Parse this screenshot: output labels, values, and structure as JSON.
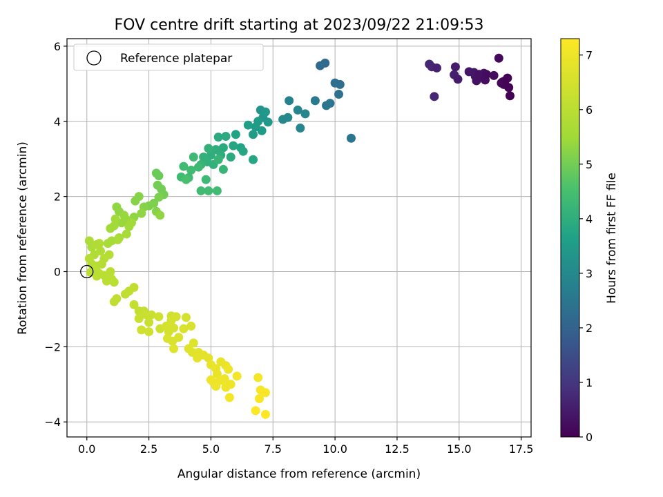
{
  "chart_data": {
    "type": "scatter",
    "title": "FOV centre drift starting at 2023/09/22 21:09:53",
    "xlabel": "Angular distance from reference (arcmin)",
    "ylabel": "Rotation from reference (arcmin)",
    "xlim": [
      -0.8,
      17.9
    ],
    "ylim": [
      -4.4,
      6.2
    ],
    "xticks": [
      "0.0",
      "2.5",
      "5.0",
      "7.5",
      "10.0",
      "12.5",
      "15.0",
      "17.5"
    ],
    "yticks": [
      "-4",
      "-2",
      "0",
      "2",
      "4",
      "6"
    ],
    "grid": true,
    "legend": {
      "placement": "upper-left",
      "entries": [
        "Reference platepar"
      ]
    },
    "reference_point": {
      "x": 0.0,
      "y": 0.0
    },
    "colorbar": {
      "label": "Hours from first FF file",
      "range": [
        0,
        7.3
      ],
      "ticks": [
        "0",
        "1",
        "2",
        "3",
        "4",
        "5",
        "6",
        "7"
      ],
      "colormap": "viridis"
    },
    "points": [
      {
        "x": 13.8,
        "y": 5.52,
        "t": 0.7
      },
      {
        "x": 13.9,
        "y": 5.45,
        "t": 0.7
      },
      {
        "x": 14.0,
        "y": 4.66,
        "t": 0.7
      },
      {
        "x": 14.1,
        "y": 5.42,
        "t": 0.6
      },
      {
        "x": 14.8,
        "y": 5.24,
        "t": 0.6
      },
      {
        "x": 14.85,
        "y": 5.45,
        "t": 0.5
      },
      {
        "x": 14.95,
        "y": 5.12,
        "t": 0.5
      },
      {
        "x": 15.4,
        "y": 5.32,
        "t": 0.4
      },
      {
        "x": 15.6,
        "y": 5.3,
        "t": 0.4
      },
      {
        "x": 15.65,
        "y": 5.2,
        "t": 0.4
      },
      {
        "x": 15.7,
        "y": 5.08,
        "t": 0.3
      },
      {
        "x": 15.8,
        "y": 5.25,
        "t": 0.3
      },
      {
        "x": 15.9,
        "y": 5.18,
        "t": 0.3
      },
      {
        "x": 16.0,
        "y": 5.28,
        "t": 0.3
      },
      {
        "x": 16.05,
        "y": 5.1,
        "t": 0.25
      },
      {
        "x": 16.1,
        "y": 5.25,
        "t": 0.2
      },
      {
        "x": 16.4,
        "y": 5.22,
        "t": 0.2
      },
      {
        "x": 16.6,
        "y": 5.68,
        "t": 0.15
      },
      {
        "x": 16.7,
        "y": 5.02,
        "t": 0.1
      },
      {
        "x": 16.75,
        "y": 5.05,
        "t": 0.1
      },
      {
        "x": 16.8,
        "y": 4.98,
        "t": 0.08
      },
      {
        "x": 16.85,
        "y": 5.08,
        "t": 0.07
      },
      {
        "x": 16.95,
        "y": 5.15,
        "t": 0.05
      },
      {
        "x": 17.0,
        "y": 4.9,
        "t": 0.03
      },
      {
        "x": 17.05,
        "y": 4.68,
        "t": 0.0
      },
      {
        "x": 9.4,
        "y": 5.48,
        "t": 2.2
      },
      {
        "x": 9.6,
        "y": 5.55,
        "t": 2.2
      },
      {
        "x": 10.0,
        "y": 5.02,
        "t": 2.3
      },
      {
        "x": 10.2,
        "y": 4.98,
        "t": 2.3
      },
      {
        "x": 10.15,
        "y": 4.72,
        "t": 2.4
      },
      {
        "x": 9.65,
        "y": 4.42,
        "t": 2.5
      },
      {
        "x": 9.8,
        "y": 4.48,
        "t": 2.5
      },
      {
        "x": 9.2,
        "y": 4.55,
        "t": 2.6
      },
      {
        "x": 10.65,
        "y": 3.55,
        "t": 2.5
      },
      {
        "x": 8.15,
        "y": 4.55,
        "t": 2.8
      },
      {
        "x": 8.5,
        "y": 4.3,
        "t": 2.9
      },
      {
        "x": 8.8,
        "y": 4.2,
        "t": 2.9
      },
      {
        "x": 8.6,
        "y": 3.82,
        "t": 2.9
      },
      {
        "x": 8.1,
        "y": 4.1,
        "t": 3.0
      },
      {
        "x": 7.9,
        "y": 4.05,
        "t": 3.0
      },
      {
        "x": 7.0,
        "y": 4.3,
        "t": 3.3
      },
      {
        "x": 7.1,
        "y": 4.1,
        "t": 3.3
      },
      {
        "x": 7.2,
        "y": 4.25,
        "t": 3.4
      },
      {
        "x": 7.3,
        "y": 3.98,
        "t": 3.4
      },
      {
        "x": 6.8,
        "y": 3.85,
        "t": 3.5
      },
      {
        "x": 6.9,
        "y": 4.0,
        "t": 3.5
      },
      {
        "x": 6.7,
        "y": 3.65,
        "t": 3.5
      },
      {
        "x": 6.5,
        "y": 3.9,
        "t": 3.6
      },
      {
        "x": 7.05,
        "y": 3.75,
        "t": 3.5
      },
      {
        "x": 6.2,
        "y": 3.3,
        "t": 3.7
      },
      {
        "x": 6.0,
        "y": 3.65,
        "t": 3.7
      },
      {
        "x": 6.3,
        "y": 3.2,
        "t": 3.8
      },
      {
        "x": 5.9,
        "y": 3.35,
        "t": 3.8
      },
      {
        "x": 6.7,
        "y": 2.98,
        "t": 3.8
      },
      {
        "x": 5.8,
        "y": 3.05,
        "t": 3.9
      },
      {
        "x": 5.6,
        "y": 3.6,
        "t": 3.9
      },
      {
        "x": 5.5,
        "y": 3.3,
        "t": 3.9
      },
      {
        "x": 5.3,
        "y": 3.58,
        "t": 3.9
      },
      {
        "x": 5.4,
        "y": 3.1,
        "t": 4.0
      },
      {
        "x": 5.2,
        "y": 3.25,
        "t": 4.0
      },
      {
        "x": 5.0,
        "y": 3.1,
        "t": 4.0
      },
      {
        "x": 4.9,
        "y": 3.28,
        "t": 4.1
      },
      {
        "x": 4.85,
        "y": 2.92,
        "t": 4.1
      },
      {
        "x": 4.7,
        "y": 3.05,
        "t": 4.1
      },
      {
        "x": 5.1,
        "y": 2.85,
        "t": 4.1
      },
      {
        "x": 5.5,
        "y": 2.72,
        "t": 4.2
      },
      {
        "x": 5.3,
        "y": 2.98,
        "t": 4.2
      },
      {
        "x": 4.6,
        "y": 2.85,
        "t": 4.2
      },
      {
        "x": 4.5,
        "y": 2.78,
        "t": 4.3
      },
      {
        "x": 4.8,
        "y": 2.45,
        "t": 4.3
      },
      {
        "x": 4.3,
        "y": 3.05,
        "t": 4.3
      },
      {
        "x": 3.9,
        "y": 2.8,
        "t": 4.4
      },
      {
        "x": 4.2,
        "y": 2.7,
        "t": 4.4
      },
      {
        "x": 4.1,
        "y": 2.5,
        "t": 4.4
      },
      {
        "x": 3.8,
        "y": 2.52,
        "t": 4.4
      },
      {
        "x": 4.0,
        "y": 2.45,
        "t": 4.5
      },
      {
        "x": 4.6,
        "y": 2.15,
        "t": 4.4
      },
      {
        "x": 4.9,
        "y": 2.15,
        "t": 4.4
      },
      {
        "x": 5.25,
        "y": 2.15,
        "t": 4.4
      },
      {
        "x": 2.8,
        "y": 2.62,
        "t": 4.9
      },
      {
        "x": 2.9,
        "y": 2.55,
        "t": 4.9
      },
      {
        "x": 2.85,
        "y": 2.3,
        "t": 5.0
      },
      {
        "x": 3.0,
        "y": 2.2,
        "t": 5.0
      },
      {
        "x": 3.1,
        "y": 2.05,
        "t": 5.0
      },
      {
        "x": 2.9,
        "y": 1.98,
        "t": 5.1
      },
      {
        "x": 2.7,
        "y": 1.82,
        "t": 5.1
      },
      {
        "x": 2.5,
        "y": 1.75,
        "t": 5.1
      },
      {
        "x": 2.3,
        "y": 1.72,
        "t": 5.2
      },
      {
        "x": 2.1,
        "y": 2.0,
        "t": 5.2
      },
      {
        "x": 1.95,
        "y": 1.88,
        "t": 5.2
      },
      {
        "x": 2.8,
        "y": 1.6,
        "t": 5.2
      },
      {
        "x": 2.95,
        "y": 1.5,
        "t": 5.3
      },
      {
        "x": 2.2,
        "y": 1.55,
        "t": 5.3
      },
      {
        "x": 1.9,
        "y": 1.45,
        "t": 5.3
      },
      {
        "x": 1.6,
        "y": 1.38,
        "t": 5.4
      },
      {
        "x": 1.4,
        "y": 1.3,
        "t": 5.4
      },
      {
        "x": 1.2,
        "y": 1.72,
        "t": 5.3
      },
      {
        "x": 1.3,
        "y": 1.6,
        "t": 5.3
      },
      {
        "x": 1.5,
        "y": 1.5,
        "t": 5.4
      },
      {
        "x": 1.7,
        "y": 1.2,
        "t": 5.5
      },
      {
        "x": 1.15,
        "y": 1.4,
        "t": 5.5
      },
      {
        "x": 0.95,
        "y": 1.15,
        "t": 5.5
      },
      {
        "x": 1.1,
        "y": 1.22,
        "t": 5.5
      },
      {
        "x": 1.6,
        "y": 1.0,
        "t": 5.6
      },
      {
        "x": 1.3,
        "y": 0.9,
        "t": 5.6
      },
      {
        "x": 1.0,
        "y": 0.82,
        "t": 5.6
      },
      {
        "x": 0.85,
        "y": 0.75,
        "t": 5.6
      },
      {
        "x": 1.25,
        "y": 0.85,
        "t": 5.7
      },
      {
        "x": 1.8,
        "y": 1.3,
        "t": 5.5
      },
      {
        "x": 0.1,
        "y": 0.82,
        "t": 5.7
      },
      {
        "x": 0.2,
        "y": 0.65,
        "t": 5.7
      },
      {
        "x": 0.4,
        "y": 0.72,
        "t": 5.8
      },
      {
        "x": 0.5,
        "y": 0.75,
        "t": 5.8
      },
      {
        "x": 0.55,
        "y": 0.55,
        "t": 5.8
      },
      {
        "x": 0.3,
        "y": 0.45,
        "t": 5.8
      },
      {
        "x": 0.1,
        "y": 0.35,
        "t": 5.9
      },
      {
        "x": 0.7,
        "y": 0.35,
        "t": 5.9
      },
      {
        "x": 0.9,
        "y": 0.45,
        "t": 5.9
      },
      {
        "x": 0.2,
        "y": 0.2,
        "t": 5.9
      },
      {
        "x": 0.4,
        "y": 0.15,
        "t": 5.9
      },
      {
        "x": 0.6,
        "y": 0.2,
        "t": 5.9
      },
      {
        "x": 0.3,
        "y": 0.05,
        "t": 6.0
      },
      {
        "x": 0.5,
        "y": -0.05,
        "t": 6.0
      },
      {
        "x": 0.15,
        "y": -0.02,
        "t": 6.0
      },
      {
        "x": 0.7,
        "y": -0.1,
        "t": 6.0
      },
      {
        "x": 0.4,
        "y": -0.12,
        "t": 6.0
      },
      {
        "x": 0.95,
        "y": 0.0,
        "t": 6.0
      },
      {
        "x": 0.8,
        "y": -0.25,
        "t": 6.0
      },
      {
        "x": 1.0,
        "y": -0.2,
        "t": 6.0
      },
      {
        "x": 1.1,
        "y": -0.28,
        "t": 6.0
      },
      {
        "x": 1.7,
        "y": -0.52,
        "t": 6.1
      },
      {
        "x": 1.9,
        "y": -0.42,
        "t": 6.1
      },
      {
        "x": 1.55,
        "y": -0.6,
        "t": 6.1
      },
      {
        "x": 1.2,
        "y": -0.72,
        "t": 6.1
      },
      {
        "x": 1.1,
        "y": -0.8,
        "t": 6.1
      },
      {
        "x": 1.9,
        "y": -0.88,
        "t": 6.2
      },
      {
        "x": 2.1,
        "y": -1.05,
        "t": 6.2
      },
      {
        "x": 2.3,
        "y": -1.05,
        "t": 6.2
      },
      {
        "x": 2.6,
        "y": -1.15,
        "t": 6.3
      },
      {
        "x": 2.4,
        "y": -1.15,
        "t": 6.3
      },
      {
        "x": 2.1,
        "y": -1.25,
        "t": 6.3
      },
      {
        "x": 2.5,
        "y": -1.35,
        "t": 6.3
      },
      {
        "x": 2.9,
        "y": -1.2,
        "t": 6.4
      },
      {
        "x": 2.2,
        "y": -1.55,
        "t": 6.4
      },
      {
        "x": 2.5,
        "y": -1.6,
        "t": 6.4
      },
      {
        "x": 2.95,
        "y": -1.52,
        "t": 6.4
      },
      {
        "x": 3.4,
        "y": -1.18,
        "t": 6.4
      },
      {
        "x": 3.6,
        "y": -1.2,
        "t": 6.5
      },
      {
        "x": 3.2,
        "y": -1.45,
        "t": 6.5
      },
      {
        "x": 3.3,
        "y": -1.6,
        "t": 6.5
      },
      {
        "x": 3.4,
        "y": -1.3,
        "t": 6.5
      },
      {
        "x": 3.5,
        "y": -1.5,
        "t": 6.5
      },
      {
        "x": 3.25,
        "y": -1.78,
        "t": 6.6
      },
      {
        "x": 3.45,
        "y": -1.85,
        "t": 6.6
      },
      {
        "x": 3.7,
        "y": -1.75,
        "t": 6.6
      },
      {
        "x": 3.9,
        "y": -1.52,
        "t": 6.6
      },
      {
        "x": 4.0,
        "y": -1.22,
        "t": 6.5
      },
      {
        "x": 4.2,
        "y": -1.45,
        "t": 6.6
      },
      {
        "x": 4.3,
        "y": -1.9,
        "t": 6.7
      },
      {
        "x": 4.1,
        "y": -2.05,
        "t": 6.7
      },
      {
        "x": 3.5,
        "y": -2.05,
        "t": 6.7
      },
      {
        "x": 4.25,
        "y": -2.15,
        "t": 6.7
      },
      {
        "x": 4.5,
        "y": -2.15,
        "t": 6.8
      },
      {
        "x": 4.45,
        "y": -2.3,
        "t": 6.8
      },
      {
        "x": 4.7,
        "y": -2.22,
        "t": 6.8
      },
      {
        "x": 4.9,
        "y": -2.3,
        "t": 6.8
      },
      {
        "x": 5.0,
        "y": -2.48,
        "t": 6.9
      },
      {
        "x": 5.2,
        "y": -2.58,
        "t": 6.9
      },
      {
        "x": 5.4,
        "y": -2.4,
        "t": 6.9
      },
      {
        "x": 5.6,
        "y": -2.5,
        "t": 6.9
      },
      {
        "x": 5.25,
        "y": -2.72,
        "t": 6.9
      },
      {
        "x": 5.0,
        "y": -2.88,
        "t": 7.0
      },
      {
        "x": 5.1,
        "y": -2.95,
        "t": 7.0
      },
      {
        "x": 5.35,
        "y": -2.9,
        "t": 7.0
      },
      {
        "x": 5.55,
        "y": -2.85,
        "t": 7.0
      },
      {
        "x": 5.6,
        "y": -2.95,
        "t": 7.0
      },
      {
        "x": 5.7,
        "y": -2.6,
        "t": 7.0
      },
      {
        "x": 5.6,
        "y": -3.08,
        "t": 7.0
      },
      {
        "x": 5.8,
        "y": -3.0,
        "t": 7.0
      },
      {
        "x": 6.05,
        "y": -2.78,
        "t": 7.1
      },
      {
        "x": 5.2,
        "y": -3.05,
        "t": 7.0
      },
      {
        "x": 5.75,
        "y": -3.35,
        "t": 7.1
      },
      {
        "x": 6.9,
        "y": -2.82,
        "t": 7.1
      },
      {
        "x": 7.0,
        "y": -3.15,
        "t": 7.2
      },
      {
        "x": 7.2,
        "y": -3.22,
        "t": 7.2
      },
      {
        "x": 6.95,
        "y": -3.38,
        "t": 7.2
      },
      {
        "x": 6.8,
        "y": -3.7,
        "t": 7.3
      },
      {
        "x": 7.2,
        "y": -3.8,
        "t": 7.3
      }
    ]
  }
}
